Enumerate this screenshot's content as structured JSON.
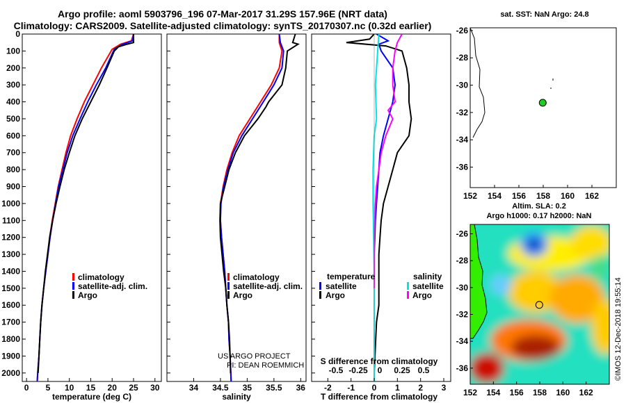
{
  "header": {
    "title_line1": "Argo profile: aoml 5903796_196 07-Mar-2017 31.29S 157.96E (NRT data)",
    "title_line2": "Climatology: CARS2009. Satellite-adjusted climatology: synTS_20170307.nc (0.32d earlier)"
  },
  "colors": {
    "climatology": "#ff0000",
    "satellite": "#0000ff",
    "argo": "#000000",
    "s_satellite": "#00e5e5",
    "s_argo": "#ff00ff",
    "land": "#33ee00",
    "float": "#22cc22"
  },
  "credits": {
    "project": "US ARGO PROJECT",
    "pi": "PI: DEAN ROEMMICH",
    "imos": "©IMOS 12-Dec-2018 19:55:14"
  },
  "chart_data": [
    {
      "id": "temperature",
      "type": "line",
      "xlabel": "temperature (deg C)",
      "xlim": [
        -1,
        31.5
      ],
      "ylim": [
        0,
        2050
      ],
      "y_reversed": true,
      "xticks": [
        0,
        5,
        10,
        15,
        20,
        25,
        30
      ],
      "yticks": [
        0,
        100,
        200,
        300,
        400,
        500,
        600,
        700,
        800,
        900,
        1000,
        1100,
        1200,
        1300,
        1400,
        1500,
        1600,
        1700,
        1800,
        1900,
        2000
      ],
      "legend": [
        "climatology",
        "satellite-adj. clim.",
        "Argo"
      ],
      "series": [
        {
          "name": "climatology",
          "color": "#ff0000",
          "points": [
            [
              25,
              0
            ],
            [
              24.5,
              40
            ],
            [
              22,
              60
            ],
            [
              20,
              90
            ],
            [
              17.5,
              200
            ],
            [
              15.5,
              300
            ],
            [
              13.5,
              400
            ],
            [
              11.8,
              500
            ],
            [
              10.3,
              600
            ],
            [
              9.2,
              700
            ],
            [
              8.3,
              800
            ],
            [
              7.4,
              900
            ],
            [
              6.7,
              1000
            ],
            [
              6,
              1100
            ],
            [
              5.4,
              1200
            ],
            [
              5,
              1300
            ],
            [
              4.5,
              1400
            ],
            [
              4,
              1500
            ],
            [
              3.6,
              1600
            ],
            [
              3.3,
              1700
            ],
            [
              3.1,
              1800
            ],
            [
              2.9,
              1900
            ],
            [
              2.6,
              2000
            ],
            [
              2.5,
              2050
            ]
          ]
        },
        {
          "name": "satellite-adj. clim.",
          "color": "#0000ff",
          "points": [
            [
              25,
              0
            ],
            [
              24.8,
              40
            ],
            [
              22.5,
              60
            ],
            [
              20.5,
              90
            ],
            [
              18.5,
              200
            ],
            [
              16.3,
              300
            ],
            [
              14.3,
              400
            ],
            [
              12.5,
              500
            ],
            [
              10.8,
              600
            ],
            [
              9.5,
              700
            ],
            [
              8.5,
              800
            ],
            [
              7.5,
              900
            ],
            [
              6.8,
              1000
            ],
            [
              6.1,
              1100
            ],
            [
              5.5,
              1200
            ],
            [
              5,
              1300
            ],
            [
              4.5,
              1400
            ],
            [
              4,
              1500
            ],
            [
              3.6,
              1600
            ],
            [
              3.3,
              1700
            ],
            [
              3.1,
              1800
            ],
            [
              2.9,
              1900
            ],
            [
              2.6,
              2000
            ],
            [
              2.5,
              2050
            ]
          ]
        },
        {
          "name": "Argo",
          "color": "#000000",
          "points": [
            [
              25,
              0
            ],
            [
              25,
              50
            ],
            [
              23.5,
              60
            ],
            [
              21.5,
              75
            ],
            [
              20.5,
              100
            ],
            [
              18.8,
              200
            ],
            [
              17,
              300
            ],
            [
              15,
              400
            ],
            [
              13,
              500
            ],
            [
              11.3,
              600
            ],
            [
              10,
              700
            ],
            [
              8.8,
              800
            ],
            [
              7.8,
              900
            ],
            [
              6.9,
              1000
            ],
            [
              6.1,
              1100
            ],
            [
              5.4,
              1200
            ],
            [
              4.9,
              1300
            ],
            [
              4.4,
              1400
            ],
            [
              4,
              1500
            ],
            [
              3.6,
              1600
            ],
            [
              3.3,
              1700
            ],
            [
              3.1,
              1800
            ],
            [
              2.9,
              1900
            ],
            [
              2.7,
              2000
            ]
          ]
        }
      ]
    },
    {
      "id": "salinity",
      "type": "line",
      "xlabel": "salinity",
      "xlim": [
        33.5,
        36.1
      ],
      "ylim": [
        0,
        2050
      ],
      "y_reversed": true,
      "xticks": [
        34,
        34.5,
        35,
        35.5,
        36
      ],
      "legend": [
        "climatology",
        "satellite-adj. clim.",
        "Argo"
      ],
      "series": [
        {
          "name": "climatology",
          "color": "#ff0000",
          "points": [
            [
              35.6,
              0
            ],
            [
              35.6,
              50
            ],
            [
              35.65,
              100
            ],
            [
              35.6,
              200
            ],
            [
              35.45,
              300
            ],
            [
              35.25,
              400
            ],
            [
              35.05,
              500
            ],
            [
              34.85,
              600
            ],
            [
              34.72,
              700
            ],
            [
              34.62,
              800
            ],
            [
              34.55,
              900
            ],
            [
              34.5,
              1000
            ],
            [
              34.5,
              1100
            ],
            [
              34.52,
              1200
            ],
            [
              34.55,
              1300
            ],
            [
              34.58,
              1400
            ],
            [
              34.6,
              1500
            ],
            [
              34.62,
              1600
            ],
            [
              34.65,
              1700
            ],
            [
              34.66,
              1800
            ],
            [
              34.68,
              1900
            ],
            [
              34.7,
              2050
            ]
          ]
        },
        {
          "name": "satellite-adj. clim.",
          "color": "#0000ff",
          "points": [
            [
              35.6,
              0
            ],
            [
              35.62,
              50
            ],
            [
              35.68,
              100
            ],
            [
              35.65,
              200
            ],
            [
              35.5,
              300
            ],
            [
              35.3,
              400
            ],
            [
              35.1,
              500
            ],
            [
              34.9,
              600
            ],
            [
              34.74,
              700
            ],
            [
              34.64,
              800
            ],
            [
              34.56,
              900
            ],
            [
              34.51,
              1000
            ],
            [
              34.5,
              1100
            ],
            [
              34.52,
              1200
            ],
            [
              34.55,
              1300
            ],
            [
              34.58,
              1400
            ],
            [
              34.6,
              1500
            ],
            [
              34.62,
              1600
            ],
            [
              34.65,
              1700
            ],
            [
              34.66,
              1800
            ],
            [
              34.68,
              1900
            ],
            [
              34.7,
              2050
            ]
          ]
        },
        {
          "name": "Argo",
          "color": "#000000",
          "points": [
            [
              35.9,
              0
            ],
            [
              35.85,
              50
            ],
            [
              35.95,
              60
            ],
            [
              35.75,
              100
            ],
            [
              35.72,
              200
            ],
            [
              35.65,
              300
            ],
            [
              35.4,
              400
            ],
            [
              35.35,
              430
            ],
            [
              35.2,
              500
            ],
            [
              34.95,
              600
            ],
            [
              34.78,
              700
            ],
            [
              34.66,
              800
            ],
            [
              34.58,
              900
            ],
            [
              34.5,
              1000
            ],
            [
              34.49,
              1100
            ],
            [
              34.5,
              1200
            ],
            [
              34.53,
              1300
            ],
            [
              34.56,
              1400
            ],
            [
              34.6,
              1500
            ],
            [
              34.62,
              1600
            ],
            [
              34.65,
              1700
            ],
            [
              34.67,
              1800
            ],
            [
              34.68,
              1900
            ],
            [
              34.69,
              2000
            ]
          ]
        }
      ]
    },
    {
      "id": "differences",
      "type": "line",
      "xlabel": "T difference from climatology",
      "xlabel_top": "S difference from climatology",
      "xlim": [
        -2.7,
        3.3
      ],
      "ylim": [
        0,
        2050
      ],
      "y_reversed": true,
      "xticks": [
        -2,
        -1,
        0,
        1,
        2,
        3
      ],
      "xticks_top": [
        "-0.5",
        "-0.25",
        "0",
        "0.25",
        "0.5"
      ],
      "legend_left_title": "temperature",
      "legend_right_title": "salinity",
      "legend_left": [
        "satellite",
        "Argo"
      ],
      "legend_right": [
        "satellite",
        "Argo"
      ],
      "series": [
        {
          "name": "T satellite",
          "color": "#0000ff",
          "points": [
            [
              0.1,
              0
            ],
            [
              0.6,
              40
            ],
            [
              0.2,
              60
            ],
            [
              0.3,
              100
            ],
            [
              0.8,
              200
            ],
            [
              0.9,
              300
            ],
            [
              0.8,
              400
            ],
            [
              0.6,
              500
            ],
            [
              0.4,
              600
            ],
            [
              0.25,
              700
            ],
            [
              0.2,
              800
            ],
            [
              0.15,
              900
            ],
            [
              0.1,
              1000
            ],
            [
              0.05,
              1100
            ],
            [
              0,
              1300
            ],
            [
              0,
              2050
            ]
          ]
        },
        {
          "name": "T Argo",
          "color": "#000000",
          "points": [
            [
              0,
              0
            ],
            [
              -0.2,
              30
            ],
            [
              -1.2,
              50
            ],
            [
              0.5,
              70
            ],
            [
              1.2,
              100
            ],
            [
              1.4,
              200
            ],
            [
              1.5,
              300
            ],
            [
              1.5,
              400
            ],
            [
              1.6,
              500
            ],
            [
              1.5,
              600
            ],
            [
              1.0,
              700
            ],
            [
              0.8,
              800
            ],
            [
              0.6,
              900
            ],
            [
              0.4,
              1000
            ],
            [
              0.3,
              1100
            ],
            [
              0.25,
              1200
            ],
            [
              0.2,
              1300
            ],
            [
              0.2,
              1600
            ],
            [
              0.1,
              1700
            ],
            [
              0,
              2000
            ]
          ]
        },
        {
          "name": "S satellite",
          "color": "#00e5e5",
          "points": [
            [
              0.2,
              0
            ],
            [
              0.15,
              100
            ],
            [
              0.05,
              300
            ],
            [
              0.1,
              500
            ],
            [
              0,
              600
            ],
            [
              -0.05,
              800
            ],
            [
              -0.05,
              1000
            ],
            [
              -0.02,
              1200
            ],
            [
              0,
              1400
            ],
            [
              0,
              2050
            ]
          ]
        },
        {
          "name": "S Argo",
          "color": "#ff00ff",
          "points": [
            [
              1.2,
              0
            ],
            [
              1.0,
              50
            ],
            [
              0.9,
              100
            ],
            [
              0.8,
              200
            ],
            [
              0.8,
              300
            ],
            [
              0.9,
              400
            ],
            [
              0.6,
              450
            ],
            [
              0.8,
              500
            ],
            [
              0.5,
              600
            ],
            [
              0.3,
              700
            ],
            [
              0.2,
              800
            ],
            [
              0.1,
              900
            ],
            [
              0.05,
              1000
            ],
            [
              0,
              1200
            ],
            [
              0,
              1400
            ],
            [
              0,
              1500
            ]
          ]
        }
      ]
    },
    {
      "id": "sst-map",
      "type": "scatter",
      "title": "sat. SST: NaN Argo: 24.8",
      "xlim": [
        152,
        164
      ],
      "ylim": [
        -37.5,
        -25.8
      ],
      "xticks": [
        152,
        154,
        156,
        158,
        160,
        162
      ],
      "yticks": [
        -26,
        -28,
        -30,
        -32,
        -34,
        -36
      ],
      "points": [
        {
          "lon": 157.96,
          "lat": -31.29
        }
      ]
    },
    {
      "id": "sla-map",
      "type": "heatmap",
      "title_line1": "Altim. SLA: 0.2",
      "title_line2": "Argo h1000: 0.17 h2000: NaN",
      "xlim": [
        152,
        164
      ],
      "ylim": [
        -37.2,
        -25.3
      ],
      "xticks": [
        152,
        154,
        156,
        158,
        160,
        162
      ],
      "yticks": [
        -26,
        -28,
        -30,
        -32,
        -34,
        -36
      ],
      "points": [
        {
          "lon": 157.96,
          "lat": -31.29
        }
      ]
    }
  ]
}
